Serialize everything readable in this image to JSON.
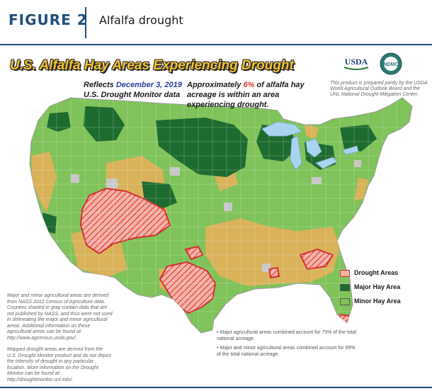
{
  "header": {
    "figure_label": "FIGURE 2",
    "figure_title": "Alfalfa drought"
  },
  "map": {
    "title": "U.S. Alfalfa Hay Areas Experiencing Drought",
    "reflects_prefix": "Reflects ",
    "date": "December 3, 2019",
    "source": "U.S. Drought Monitor data",
    "acreage_prefix": "Approximately ",
    "acreage_pct": "6%",
    "acreage_suffix": " of alfalfa hay",
    "acreage_line2": "acreage is within an area",
    "acreage_line3": "experiencing drought.",
    "credit": "This product is prepared jointly by the USDA World Agricultural Outlook Board and the UNL National Drought Mitigation Center.",
    "logos": {
      "usda": "USDA",
      "ndmc": "NDMC"
    }
  },
  "legend": [
    {
      "label": "Drought Areas",
      "color": "#f4b3a8"
    },
    {
      "label": "Major Hay Area",
      "color": "#1e6b2f"
    },
    {
      "label": "Minor Hay Area",
      "color": "#7fc35a"
    }
  ],
  "notes": {
    "ag_areas": "Major and minor agricultural areas are derived from NASS 2012 Census of Agriculture data. Counties shaded in gray contain data that are not published by NASS, and thus were not used in delineating the major and minor agricultural areas. Additional information on these agricultural areas can be found at: http://www.agcensus.usda.gov/.",
    "drought": "Mapped drought areas are derived from the U.S. Drought Monitor product and do not depict the intensity of drought in any particular location. More information on the Drought Monitor can be found at: http://droughtmonitor.unl.edu/."
  },
  "bullets": [
    "Major agricultural areas combined account for 75% of the total national acreage.",
    "Major and minor agricultural areas combined account for 99% of the total national acreage."
  ],
  "colors": {
    "brand_navy": "#1f4f7a",
    "major_hay": "#1e6b2f",
    "minor_hay": "#7fc35a",
    "non_ag": "#d9b25a",
    "no_data": "#c8c8c8",
    "water": "#a8d4ef",
    "drought_outline": "#d62d2d"
  }
}
